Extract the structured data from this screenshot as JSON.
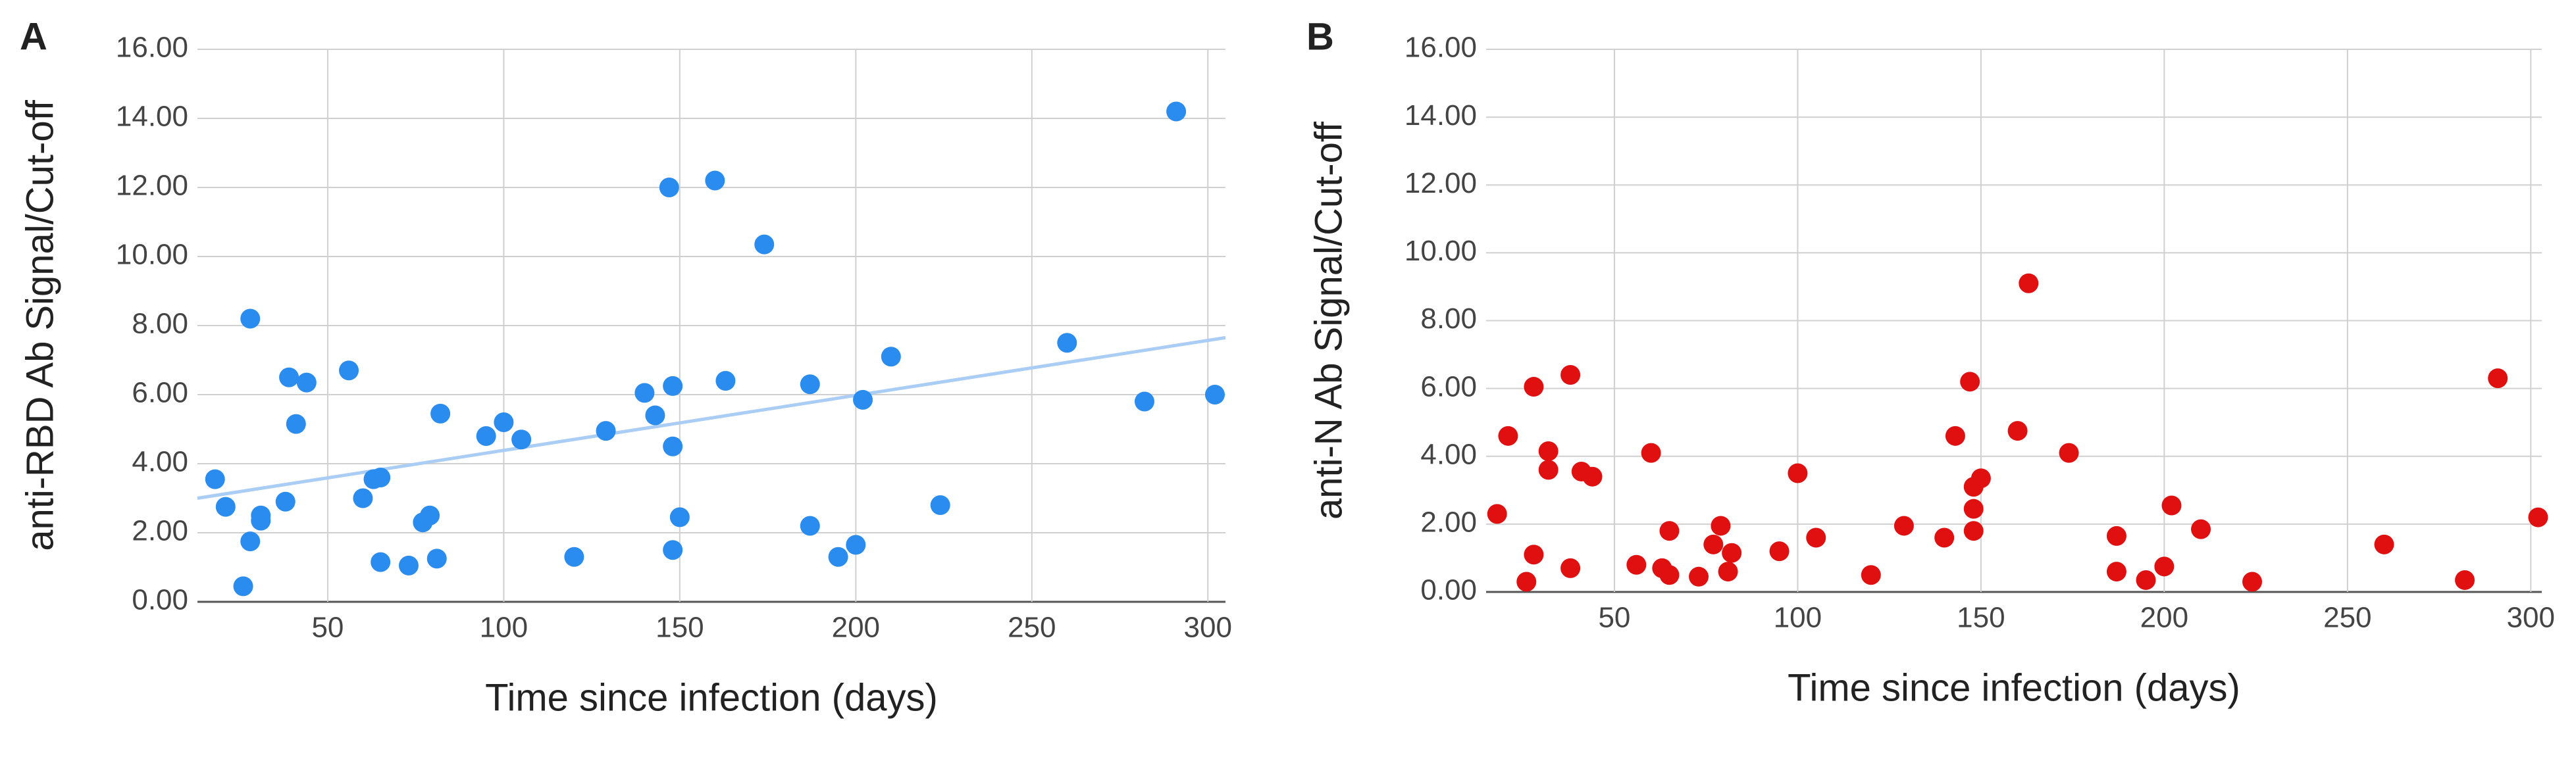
{
  "chart_data": [
    {
      "type": "scatter",
      "label": "A",
      "xlabel": "Time since infection (days)",
      "ylabel": "anti-RBD Ab Signal/Cut-off",
      "color": "#2a8cee",
      "grid": true,
      "xlim": [
        13,
        305
      ],
      "xticks": [
        50,
        100,
        150,
        200,
        250,
        300
      ],
      "ylim": [
        0,
        16
      ],
      "yticks": [
        {
          "value": 0,
          "label": "0.00"
        },
        {
          "value": 2,
          "label": "2.00"
        },
        {
          "value": 4,
          "label": "4.00"
        },
        {
          "value": 6,
          "label": "6.00"
        },
        {
          "value": 8,
          "label": "8.00"
        },
        {
          "value": 10,
          "label": "10.00"
        },
        {
          "value": 12,
          "label": "12.00"
        },
        {
          "value": 14,
          "label": "14.00"
        },
        {
          "value": 16,
          "label": "16.00"
        }
      ],
      "x": [
        18,
        21,
        26,
        28,
        28,
        31,
        31,
        38,
        39,
        41,
        44,
        56,
        60,
        63,
        65,
        65,
        73,
        77,
        79,
        81,
        82,
        95,
        100,
        105,
        120,
        129,
        140,
        143,
        147,
        148,
        148,
        148,
        150,
        160,
        163,
        174,
        187,
        187,
        195,
        200,
        202,
        210,
        224,
        260,
        282,
        291,
        302
      ],
      "values": [
        3.55,
        2.75,
        0.45,
        8.2,
        1.75,
        2.5,
        2.35,
        2.9,
        6.5,
        5.15,
        6.35,
        6.7,
        3.0,
        3.55,
        3.6,
        1.15,
        1.05,
        2.3,
        2.5,
        1.25,
        5.45,
        4.8,
        5.2,
        4.7,
        1.3,
        4.95,
        6.05,
        5.4,
        12.0,
        6.25,
        4.5,
        1.5,
        2.45,
        12.2,
        6.4,
        10.35,
        6.3,
        2.2,
        1.3,
        1.65,
        5.85,
        7.1,
        2.8,
        7.5,
        5.8,
        14.2,
        6.0
      ],
      "trendline": {
        "x": [
          13,
          305
        ],
        "values": [
          3.0,
          7.65
        ],
        "color": "#a9cdf4"
      }
    },
    {
      "type": "scatter",
      "label": "B",
      "xlabel": "Time since infection (days)",
      "ylabel": "anti-N Ab Signal/Cut-off",
      "color": "#e01010",
      "grid": true,
      "xlim": [
        15,
        303
      ],
      "xticks": [
        50,
        100,
        150,
        200,
        250,
        300
      ],
      "ylim": [
        0,
        16
      ],
      "yticks": [
        {
          "value": 0,
          "label": "0.00"
        },
        {
          "value": 2,
          "label": "2.00"
        },
        {
          "value": 4,
          "label": "4.00"
        },
        {
          "value": 6,
          "label": "6.00"
        },
        {
          "value": 8,
          "label": "8.00"
        },
        {
          "value": 10,
          "label": "10.00"
        },
        {
          "value": 12,
          "label": "12.00"
        },
        {
          "value": 14,
          "label": "14.00"
        },
        {
          "value": 16,
          "label": "16.00"
        }
      ],
      "x": [
        18,
        21,
        26,
        28,
        28,
        32,
        32,
        38,
        38,
        41,
        44,
        56,
        60,
        63,
        65,
        65,
        73,
        77,
        79,
        81,
        82,
        95,
        100,
        105,
        120,
        129,
        140,
        143,
        147,
        148,
        148,
        148,
        150,
        160,
        163,
        174,
        187,
        187,
        195,
        200,
        202,
        210,
        224,
        260,
        282,
        291,
        302
      ],
      "values": [
        2.3,
        4.6,
        0.3,
        6.05,
        1.1,
        4.15,
        3.6,
        6.4,
        0.7,
        3.55,
        3.4,
        0.8,
        4.1,
        0.7,
        0.5,
        1.8,
        0.45,
        1.4,
        1.95,
        0.6,
        1.15,
        1.2,
        3.5,
        1.6,
        0.5,
        1.95,
        1.6,
        4.6,
        6.2,
        3.1,
        2.45,
        1.8,
        3.35,
        4.75,
        9.1,
        4.1,
        1.65,
        0.6,
        0.35,
        0.75,
        2.55,
        1.85,
        0.3,
        1.4,
        0.35,
        6.3,
        2.2
      ]
    }
  ]
}
